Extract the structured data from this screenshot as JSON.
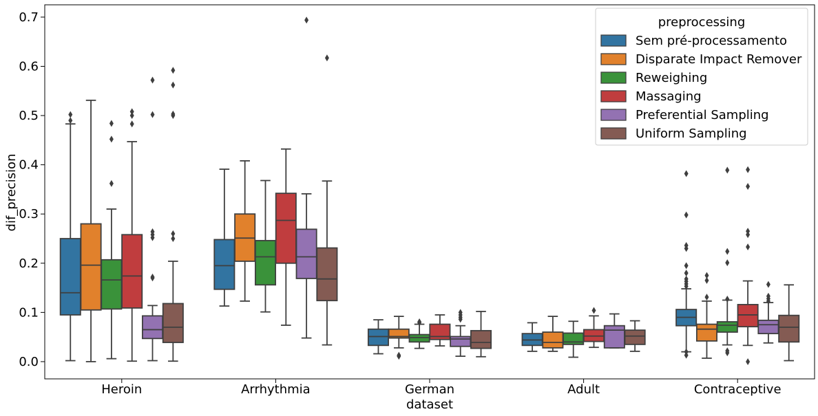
{
  "chart_data": {
    "type": "box",
    "xlabel": "dataset",
    "ylabel": "dif_precision",
    "ylim": [
      -0.035,
      0.725
    ],
    "yticks": [
      "0.0",
      "0.1",
      "0.2",
      "0.3",
      "0.4",
      "0.5",
      "0.6",
      "0.7"
    ],
    "categories": [
      "Heroin",
      "Arrhythmia",
      "German",
      "Adult",
      "Contraceptive"
    ],
    "legend": {
      "title": "preprocessing",
      "position": "top-right"
    },
    "series": [
      {
        "name": "Sem pré-processamento",
        "color": "#3274a1",
        "boxes": [
          {
            "whislo": 0.002,
            "q1": 0.095,
            "med": 0.14,
            "q3": 0.25,
            "whishi": 0.483,
            "fliers": [
              0.49,
              0.502
            ]
          },
          {
            "whislo": 0.113,
            "q1": 0.147,
            "med": 0.195,
            "q3": 0.248,
            "whishi": 0.391,
            "fliers": []
          },
          {
            "whislo": 0.016,
            "q1": 0.033,
            "med": 0.051,
            "q3": 0.066,
            "whishi": 0.085,
            "fliers": []
          },
          {
            "whislo": 0.021,
            "q1": 0.033,
            "med": 0.044,
            "q3": 0.057,
            "whishi": 0.079,
            "fliers": []
          },
          {
            "whislo": 0.02,
            "q1": 0.073,
            "med": 0.09,
            "q3": 0.106,
            "whishi": 0.148,
            "fliers": [
              0.013,
              0.02,
              0.153,
              0.158,
              0.163,
              0.168,
              0.18,
              0.195,
              0.23,
              0.236,
              0.298,
              0.382
            ]
          }
        ]
      },
      {
        "name": "Disparate Impact Remover",
        "color": "#e1812c",
        "boxes": [
          {
            "whislo": 0.0,
            "q1": 0.105,
            "med": 0.196,
            "q3": 0.28,
            "whishi": 0.531,
            "fliers": []
          },
          {
            "whislo": 0.123,
            "q1": 0.204,
            "med": 0.251,
            "q3": 0.3,
            "whishi": 0.408,
            "fliers": []
          },
          {
            "whislo": 0.028,
            "q1": 0.048,
            "med": 0.051,
            "q3": 0.066,
            "whishi": 0.092,
            "fliers": [
              0.011,
              0.013
            ]
          },
          {
            "whislo": 0.021,
            "q1": 0.028,
            "med": 0.039,
            "q3": 0.06,
            "whishi": 0.092,
            "fliers": []
          },
          {
            "whislo": 0.007,
            "q1": 0.042,
            "med": 0.066,
            "q3": 0.076,
            "whishi": 0.123,
            "fliers": [
              0.131,
              0.165,
              0.175
            ]
          }
        ]
      },
      {
        "name": "Reweighing",
        "color": "#3a923a",
        "boxes": [
          {
            "whislo": 0.006,
            "q1": 0.107,
            "med": 0.166,
            "q3": 0.207,
            "whishi": 0.31,
            "fliers": [
              0.362,
              0.452,
              0.484
            ]
          },
          {
            "whislo": 0.101,
            "q1": 0.156,
            "med": 0.213,
            "q3": 0.246,
            "whishi": 0.368,
            "fliers": []
          },
          {
            "whislo": 0.027,
            "q1": 0.04,
            "med": 0.049,
            "q3": 0.055,
            "whishi": 0.076,
            "fliers": [
              0.079,
              0.081
            ]
          },
          {
            "whislo": 0.009,
            "q1": 0.035,
            "med": 0.04,
            "q3": 0.058,
            "whishi": 0.082,
            "fliers": []
          },
          {
            "whislo": 0.034,
            "q1": 0.06,
            "med": 0.074,
            "q3": 0.081,
            "whishi": 0.125,
            "fliers": [
              0.018,
              0.022,
              0.127,
              0.201,
              0.224,
              0.389
            ]
          }
        ]
      },
      {
        "name": "Massaging",
        "color": "#c03d3e",
        "boxes": [
          {
            "whislo": 0.001,
            "q1": 0.109,
            "med": 0.174,
            "q3": 0.258,
            "whishi": 0.447,
            "fliers": [
              0.483,
              0.5,
              0.508
            ]
          },
          {
            "whislo": 0.074,
            "q1": 0.2,
            "med": 0.287,
            "q3": 0.342,
            "whishi": 0.432,
            "fliers": []
          },
          {
            "whislo": 0.032,
            "q1": 0.045,
            "med": 0.051,
            "q3": 0.076,
            "whishi": 0.095,
            "fliers": []
          },
          {
            "whislo": 0.029,
            "q1": 0.041,
            "med": 0.052,
            "q3": 0.065,
            "whishi": 0.093,
            "fliers": [
              0.104
            ]
          },
          {
            "whislo": 0.033,
            "q1": 0.071,
            "med": 0.095,
            "q3": 0.116,
            "whishi": 0.164,
            "fliers": [
              0.0,
              0.233,
              0.258,
              0.265,
              0.356,
              0.39
            ]
          }
        ]
      },
      {
        "name": "Preferential Sampling",
        "color": "#9372b2",
        "boxes": [
          {
            "whislo": 0.002,
            "q1": 0.047,
            "med": 0.065,
            "q3": 0.093,
            "whishi": 0.114,
            "fliers": [
              0.17,
              0.172,
              0.252,
              0.258,
              0.264,
              0.502,
              0.572
            ]
          },
          {
            "whislo": 0.048,
            "q1": 0.169,
            "med": 0.213,
            "q3": 0.269,
            "whishi": 0.341,
            "fliers": [
              0.694
            ]
          },
          {
            "whislo": 0.011,
            "q1": 0.031,
            "med": 0.046,
            "q3": 0.051,
            "whishi": 0.073,
            "fliers": [
              0.086,
              0.09,
              0.095,
              0.1
            ]
          },
          {
            "whislo": 0.028,
            "q1": 0.028,
            "med": 0.064,
            "q3": 0.073,
            "whishi": 0.097,
            "fliers": []
          },
          {
            "whislo": 0.038,
            "q1": 0.057,
            "med": 0.075,
            "q3": 0.084,
            "whishi": 0.12,
            "fliers": [
              0.123,
              0.128,
              0.133,
              0.157
            ]
          }
        ]
      },
      {
        "name": "Uniform Sampling",
        "color": "#845b53",
        "boxes": [
          {
            "whislo": 0.001,
            "q1": 0.039,
            "med": 0.07,
            "q3": 0.118,
            "whishi": 0.204,
            "fliers": [
              0.25,
              0.26,
              0.5,
              0.503,
              0.562,
              0.592
            ]
          },
          {
            "whislo": 0.034,
            "q1": 0.124,
            "med": 0.168,
            "q3": 0.231,
            "whishi": 0.367,
            "fliers": [
              0.617
            ]
          },
          {
            "whislo": 0.01,
            "q1": 0.027,
            "med": 0.039,
            "q3": 0.063,
            "whishi": 0.102,
            "fliers": []
          },
          {
            "whislo": 0.021,
            "q1": 0.035,
            "med": 0.052,
            "q3": 0.064,
            "whishi": 0.083,
            "fliers": []
          },
          {
            "whislo": 0.002,
            "q1": 0.04,
            "med": 0.07,
            "q3": 0.094,
            "whishi": 0.156,
            "fliers": []
          }
        ]
      }
    ]
  }
}
